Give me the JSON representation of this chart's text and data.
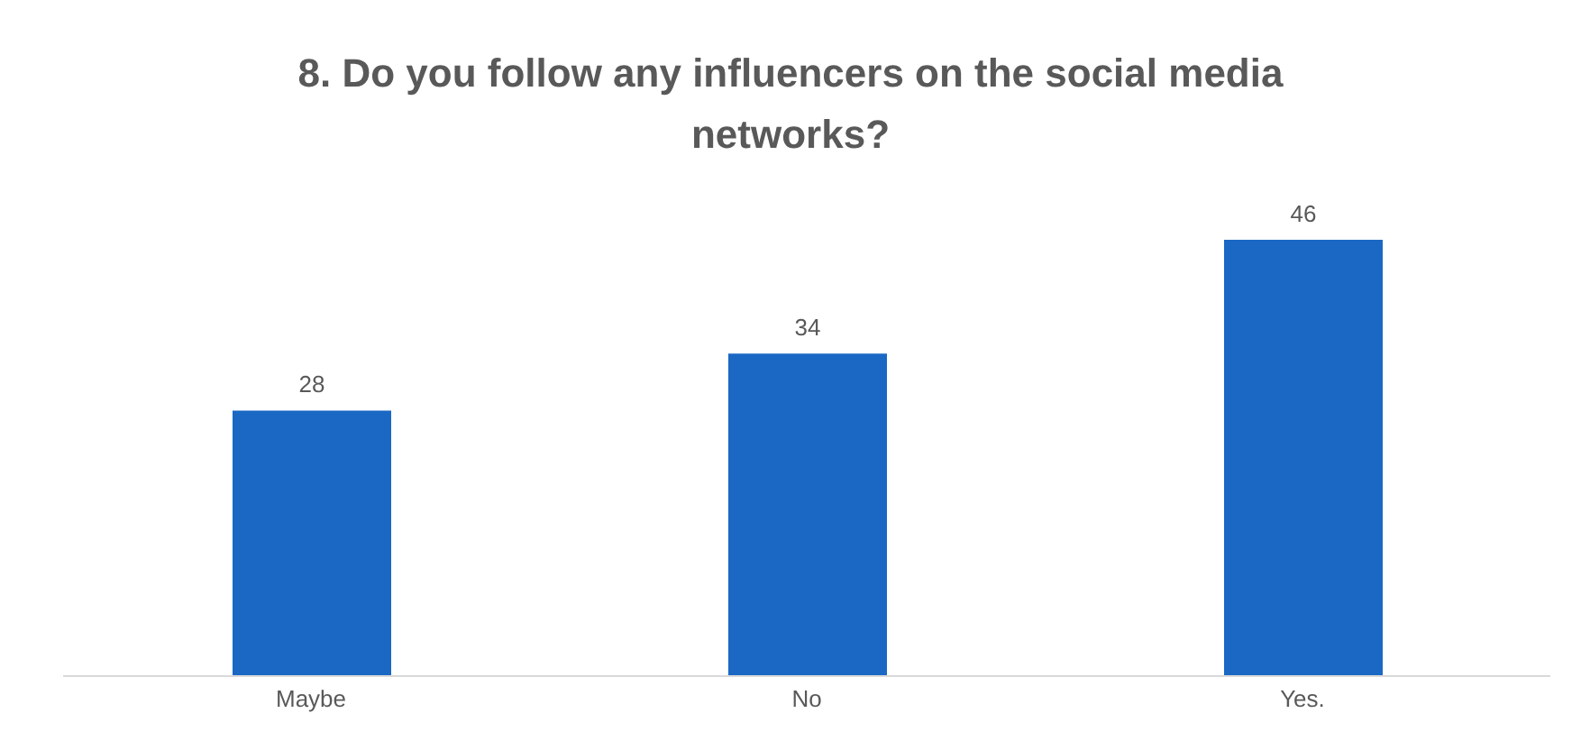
{
  "chart_data": {
    "type": "bar",
    "title": "8. Do you follow any influencers on the social media networks?",
    "categories": [
      "Maybe",
      "No",
      "Yes."
    ],
    "values": [
      28,
      34,
      46
    ],
    "color": "#1a68c4",
    "data_labels": true,
    "tick_labels": "x"
  }
}
